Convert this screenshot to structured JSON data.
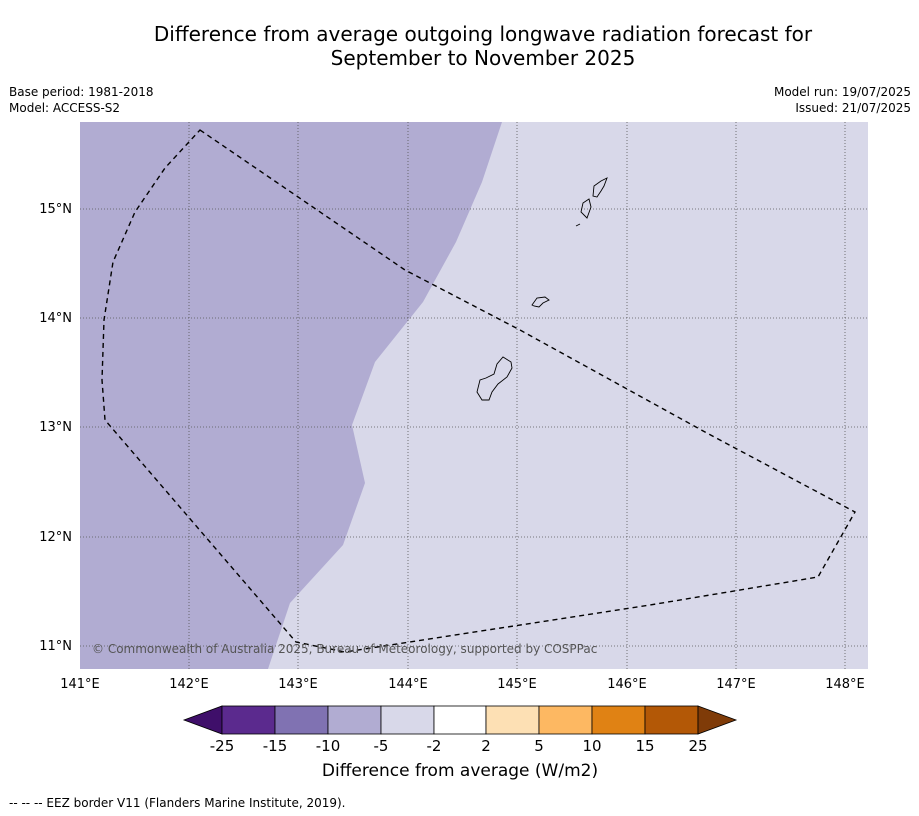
{
  "title": {
    "line1": "Difference from average outgoing longwave radiation forecast for",
    "line2": "September to November 2025"
  },
  "meta": {
    "base_period": "Base period: 1981-2018",
    "model": "Model: ACCESS-S2",
    "model_run": "Model run: 19/07/2025",
    "issued": "Issued: 21/07/2025"
  },
  "map": {
    "lon_labels": [
      "141°E",
      "142°E",
      "143°E",
      "144°E",
      "145°E",
      "146°E",
      "147°E",
      "148°E"
    ],
    "lat_labels": [
      "15°N",
      "14°N",
      "13°N",
      "12°N",
      "11°N"
    ],
    "copyright": "© Commonwealth of Australia 2025, Bureau of Meteorology, supported by COSPPac",
    "colors": {
      "dark_zone": "#b1acd2",
      "light_zone": "#d8d8e9",
      "grid": "#555555"
    }
  },
  "colorbar": {
    "labels": [
      "-25",
      "-15",
      "-10",
      "-5",
      "-2",
      "2",
      "5",
      "10",
      "15",
      "25"
    ],
    "colors": [
      "#3f0f6a",
      "#5b2a8e",
      "#8072b2",
      "#b1acd2",
      "#d8d8e9",
      "#ffffff",
      "#fde0b4",
      "#fdb862",
      "#e08214",
      "#b35806",
      "#7f3b08"
    ],
    "title": "Difference from average (W/m2)"
  },
  "footnote": "--  --  -- EEZ border V11 (Flanders Marine Institute, 2019)."
}
